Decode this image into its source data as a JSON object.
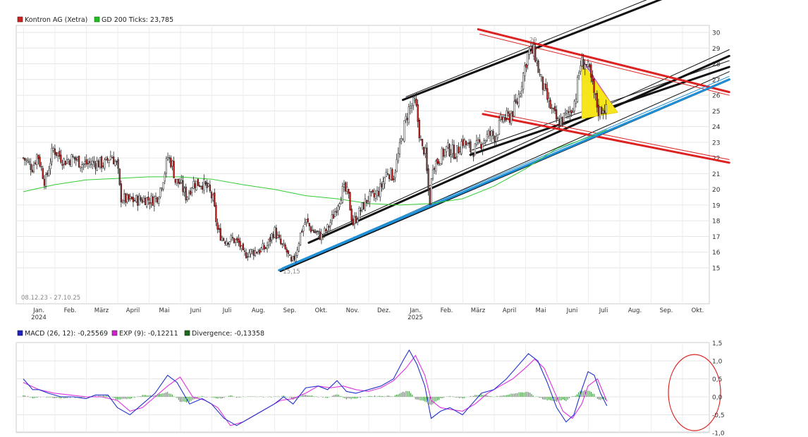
{
  "chart_data": [
    {
      "type": "line",
      "subtype": "candlestick",
      "date_range_label": "08.12.23 - 27.10.25",
      "legend": [
        {
          "label": "Kontron AG (Xetra)",
          "color": "#cc2222"
        },
        {
          "label": "GD 200 Ticks: 23,785",
          "color": "#22bb22"
        }
      ],
      "x_labels": [
        "Jan.",
        "Feb.",
        "März",
        "April",
        "Mai",
        "Juni",
        "Juli",
        "Aug.",
        "Sep.",
        "Okt.",
        "Nov.",
        "Dez.",
        "Jan.",
        "Feb.",
        "März",
        "April",
        "Mai",
        "Juni",
        "Juli",
        "Aug.",
        "Sep.",
        "Okt."
      ],
      "year_labels": [
        "2024",
        "2025"
      ],
      "y_ticks": [
        "15",
        "16",
        "17",
        "18",
        "19",
        "20",
        "21",
        "22",
        "23",
        "24",
        "25",
        "26",
        "27",
        "28",
        "29",
        "30"
      ],
      "ylim": [
        14,
        30.5
      ],
      "price_annotations": [
        "15,15",
        "29"
      ],
      "waypoints": [
        [
          0,
          22.0
        ],
        [
          0.3,
          21.4
        ],
        [
          0.45,
          22.3
        ],
        [
          0.7,
          20.4
        ],
        [
          0.95,
          22.6
        ],
        [
          1.3,
          21.8
        ],
        [
          1.6,
          22.0
        ],
        [
          1.9,
          21.6
        ],
        [
          2.3,
          21.7
        ],
        [
          2.6,
          21.6
        ],
        [
          2.8,
          22.2
        ],
        [
          3.0,
          21.5
        ],
        [
          3.1,
          19.5
        ],
        [
          3.3,
          19.3
        ],
        [
          3.6,
          19.3
        ],
        [
          3.9,
          19.4
        ],
        [
          4.1,
          19.3
        ],
        [
          4.3,
          19.6
        ],
        [
          4.5,
          21.0
        ],
        [
          4.6,
          22.1
        ],
        [
          4.75,
          21.6
        ],
        [
          4.85,
          20.5
        ],
        [
          5.0,
          20.4
        ],
        [
          5.2,
          19.5
        ],
        [
          5.4,
          20.4
        ],
        [
          5.7,
          20.4
        ],
        [
          5.9,
          20.0
        ],
        [
          6.05,
          19.3
        ],
        [
          6.2,
          17.3
        ],
        [
          6.4,
          16.8
        ],
        [
          6.7,
          16.8
        ],
        [
          6.9,
          16.5
        ],
        [
          7.0,
          15.8
        ],
        [
          7.2,
          16.0
        ],
        [
          7.5,
          16.1
        ],
        [
          7.75,
          16.3
        ],
        [
          8.0,
          17.4
        ],
        [
          8.2,
          16.5
        ],
        [
          8.4,
          16.0
        ],
        [
          8.55,
          15.2
        ],
        [
          8.7,
          16.0
        ],
        [
          8.85,
          17.3
        ],
        [
          9.0,
          18.0
        ],
        [
          9.2,
          17.4
        ],
        [
          9.5,
          17.0
        ],
        [
          9.7,
          17.5
        ],
        [
          9.9,
          18.4
        ],
        [
          10.05,
          19.3
        ],
        [
          10.2,
          20.0
        ],
        [
          10.35,
          19.7
        ],
        [
          10.5,
          17.8
        ],
        [
          10.7,
          18.5
        ],
        [
          11.0,
          19.5
        ],
        [
          11.2,
          19.5
        ],
        [
          11.4,
          20.1
        ],
        [
          11.6,
          21.2
        ],
        [
          11.8,
          20.8
        ],
        [
          12.0,
          22.6
        ],
        [
          12.15,
          24.1
        ],
        [
          12.3,
          25.2
        ],
        [
          12.5,
          25.5
        ],
        [
          12.7,
          22.5
        ],
        [
          12.8,
          22.6
        ],
        [
          12.95,
          19.0
        ],
        [
          13.05,
          21.6
        ],
        [
          13.2,
          21.8
        ],
        [
          13.5,
          22.6
        ],
        [
          13.8,
          22.3
        ],
        [
          14.0,
          23.1
        ],
        [
          14.3,
          22.4
        ],
        [
          14.6,
          23.0
        ],
        [
          14.85,
          23.5
        ],
        [
          15.05,
          23.4
        ],
        [
          15.25,
          24.5
        ],
        [
          15.5,
          24.6
        ],
        [
          15.75,
          25.6
        ],
        [
          15.95,
          27.5
        ],
        [
          16.1,
          28.8
        ],
        [
          16.3,
          28.7
        ],
        [
          16.45,
          27.3
        ],
        [
          16.65,
          26.0
        ],
        [
          16.85,
          25.0
        ],
        [
          17.05,
          24.2
        ],
        [
          17.25,
          24.6
        ],
        [
          17.45,
          25.0
        ],
        [
          17.6,
          25.8
        ],
        [
          17.75,
          28.0
        ],
        [
          17.9,
          28.1
        ],
        [
          18.05,
          27.4
        ],
        [
          18.2,
          26.0
        ],
        [
          18.35,
          24.9
        ],
        [
          18.5,
          25.3
        ],
        [
          18.6,
          24.9
        ]
      ],
      "moving_average": [
        [
          0,
          19.85
        ],
        [
          1,
          20.3
        ],
        [
          2,
          20.6
        ],
        [
          3,
          20.7
        ],
        [
          4,
          20.8
        ],
        [
          5,
          20.8
        ],
        [
          6,
          20.65
        ],
        [
          7,
          20.3
        ],
        [
          8,
          20.0
        ],
        [
          9,
          19.6
        ],
        [
          10,
          19.4
        ],
        [
          11,
          19.1
        ],
        [
          12,
          19.0
        ],
        [
          13,
          19.1
        ],
        [
          14,
          19.4
        ],
        [
          15,
          20.2
        ],
        [
          16,
          21.3
        ],
        [
          17,
          22.6
        ],
        [
          18,
          23.3
        ],
        [
          18.6,
          23.8
        ]
      ],
      "trendlines": {
        "black": [
          {
            "from": [
              9.1,
              16.6
            ],
            "to": [
              22.5,
              28.5
            ],
            "w": 3
          },
          {
            "from": [
              8.2,
              14.8
            ],
            "to": [
              22.5,
              27.0
            ],
            "w": 3
          },
          {
            "from": [
              12.1,
              25.7
            ],
            "to": [
              22.5,
              33.8
            ],
            "w": 3
          },
          {
            "from": [
              14.25,
              22.2
            ],
            "to": [
              22.5,
              27.8
            ],
            "w": 3
          }
        ],
        "black_thin": [
          {
            "from": [
              8.6,
              15.2
            ],
            "to": [
              22.5,
              27.5
            ],
            "w": 1
          },
          {
            "from": [
              9.4,
              17.0
            ],
            "to": [
              22.5,
              28.9
            ],
            "w": 1
          },
          {
            "from": [
              12.2,
              25.9
            ],
            "to": [
              22.5,
              34.2
            ],
            "w": 1
          },
          {
            "from": [
              14.3,
              22.5
            ],
            "to": [
              22.5,
              28.2
            ],
            "w": 1
          }
        ],
        "red": [
          {
            "from": [
              14.5,
              30.2
            ],
            "to": [
              22.5,
              26.2
            ],
            "w": 3
          },
          {
            "from": [
              14.65,
              24.8
            ],
            "to": [
              22.5,
              21.7
            ],
            "w": 3
          }
        ],
        "red_thin": [
          {
            "from": [
              14.55,
              29.9
            ],
            "to": [
              22.5,
              26.0
            ],
            "w": 1
          },
          {
            "from": [
              14.7,
              25.0
            ],
            "to": [
              22.5,
              21.9
            ],
            "w": 1
          }
        ],
        "blue": [
          {
            "from": [
              8.15,
              14.85
            ],
            "to": [
              22.5,
              27.0
            ],
            "w": 3
          },
          {
            "from": [
              8.25,
              15.0
            ],
            "to": [
              22.5,
              27.2
            ],
            "w": 1
          }
        ],
        "magenta": [
          {
            "from": [
              17.8,
              28.3
            ],
            "to": [
              18.9,
              25.0
            ],
            "w": 1
          }
        ]
      },
      "yellow_triangle": [
        [
          17.8,
          28.1
        ],
        [
          17.8,
          24.5
        ],
        [
          18.95,
          24.9
        ]
      ]
    },
    {
      "type": "line",
      "title": "MACD",
      "legend": [
        {
          "label": "MACD (26, 12): -0,25569",
          "color": "#2222bb"
        },
        {
          "label": "EXP (9): -0,12211",
          "color": "#cc22cc"
        },
        {
          "label": "Divergence: -0,13358",
          "color": "#226622"
        }
      ],
      "y_ticks": [
        "1,5",
        "1,0",
        "0,5",
        "0,0",
        "-0,5",
        "-1,0"
      ],
      "ylim": [
        -1.0,
        1.5
      ],
      "macd": [
        [
          0,
          0.5
        ],
        [
          0.3,
          0.2
        ],
        [
          0.5,
          0.2
        ],
        [
          0.8,
          0.1
        ],
        [
          1.2,
          0.0
        ],
        [
          1.6,
          0.0
        ],
        [
          2.0,
          -0.05
        ],
        [
          2.3,
          0.05
        ],
        [
          2.7,
          0.05
        ],
        [
          3.0,
          -0.3
        ],
        [
          3.4,
          -0.5
        ],
        [
          3.8,
          -0.2
        ],
        [
          4.2,
          0.1
        ],
        [
          4.6,
          0.6
        ],
        [
          4.9,
          0.4
        ],
        [
          5.3,
          -0.2
        ],
        [
          5.7,
          -0.05
        ],
        [
          6.0,
          -0.2
        ],
        [
          6.4,
          -0.6
        ],
        [
          6.8,
          -0.8
        ],
        [
          7.2,
          -0.6
        ],
        [
          7.6,
          -0.4
        ],
        [
          8.0,
          -0.2
        ],
        [
          8.3,
          0.0
        ],
        [
          8.6,
          -0.2
        ],
        [
          9.0,
          0.25
        ],
        [
          9.4,
          0.3
        ],
        [
          9.7,
          0.2
        ],
        [
          10.0,
          0.45
        ],
        [
          10.3,
          0.15
        ],
        [
          10.6,
          0.1
        ],
        [
          11.0,
          0.2
        ],
        [
          11.4,
          0.3
        ],
        [
          11.8,
          0.5
        ],
        [
          12.1,
          1.0
        ],
        [
          12.3,
          1.3
        ],
        [
          12.55,
          0.9
        ],
        [
          12.8,
          0.3
        ],
        [
          13.0,
          -0.6
        ],
        [
          13.3,
          -0.4
        ],
        [
          13.6,
          -0.3
        ],
        [
          14.0,
          -0.5
        ],
        [
          14.3,
          -0.2
        ],
        [
          14.6,
          0.1
        ],
        [
          15.0,
          0.2
        ],
        [
          15.4,
          0.5
        ],
        [
          15.8,
          0.9
        ],
        [
          16.1,
          1.2
        ],
        [
          16.4,
          1.0
        ],
        [
          16.7,
          0.4
        ],
        [
          17.0,
          -0.3
        ],
        [
          17.3,
          -0.7
        ],
        [
          17.55,
          -0.5
        ],
        [
          17.8,
          0.2
        ],
        [
          18.0,
          0.7
        ],
        [
          18.2,
          0.6
        ],
        [
          18.4,
          0.1
        ],
        [
          18.6,
          -0.25
        ]
      ],
      "signal": [
        [
          0,
          0.4
        ],
        [
          0.5,
          0.2
        ],
        [
          1.0,
          0.1
        ],
        [
          1.5,
          0.05
        ],
        [
          2.0,
          0.0
        ],
        [
          2.5,
          0.0
        ],
        [
          3.0,
          -0.1
        ],
        [
          3.4,
          -0.4
        ],
        [
          3.8,
          -0.3
        ],
        [
          4.2,
          0.0
        ],
        [
          4.6,
          0.3
        ],
        [
          5.0,
          0.55
        ],
        [
          5.4,
          0.0
        ],
        [
          5.8,
          -0.1
        ],
        [
          6.2,
          -0.3
        ],
        [
          6.6,
          -0.8
        ],
        [
          7.0,
          -0.7
        ],
        [
          7.4,
          -0.5
        ],
        [
          7.8,
          -0.3
        ],
        [
          8.2,
          -0.1
        ],
        [
          8.6,
          -0.05
        ],
        [
          9.0,
          0.1
        ],
        [
          9.4,
          0.3
        ],
        [
          9.8,
          0.25
        ],
        [
          10.2,
          0.3
        ],
        [
          10.6,
          0.2
        ],
        [
          11.0,
          0.15
        ],
        [
          11.4,
          0.25
        ],
        [
          11.8,
          0.45
        ],
        [
          12.2,
          0.8
        ],
        [
          12.5,
          1.15
        ],
        [
          12.8,
          0.6
        ],
        [
          13.0,
          -0.1
        ],
        [
          13.3,
          -0.3
        ],
        [
          13.6,
          -0.35
        ],
        [
          14.0,
          -0.4
        ],
        [
          14.4,
          -0.2
        ],
        [
          14.8,
          0.1
        ],
        [
          15.2,
          0.3
        ],
        [
          15.6,
          0.5
        ],
        [
          16.0,
          0.8
        ],
        [
          16.3,
          1.05
        ],
        [
          16.6,
          0.8
        ],
        [
          16.9,
          0.2
        ],
        [
          17.2,
          -0.4
        ],
        [
          17.5,
          -0.6
        ],
        [
          17.8,
          -0.2
        ],
        [
          18.0,
          0.3
        ],
        [
          18.3,
          0.5
        ],
        [
          18.6,
          -0.12
        ]
      ],
      "divergence_scale": 0.45
    }
  ]
}
